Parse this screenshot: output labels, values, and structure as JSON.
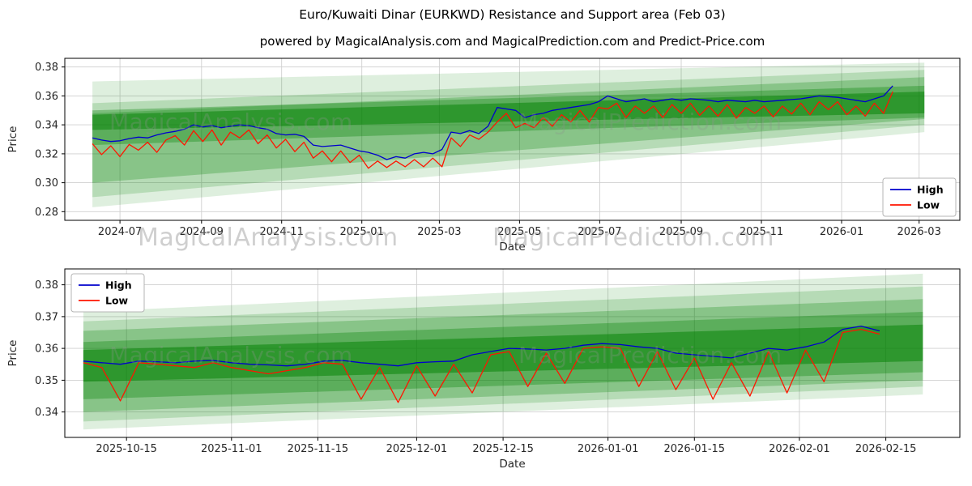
{
  "figure": {
    "suptitle": "Euro/Kuwaiti Dinar (EURKWD) Resistance and Support area (Feb 03)",
    "title": "powered by MagicalAnalysis.com and MagicalPrediction.com and Predict-Price.com"
  },
  "watermarks": {
    "top_left": "MagicalAnalysis.com",
    "top_right": "MagicalPrediction.com",
    "mid_left": "MagicalAnalysis.com",
    "mid_right": "MagicalPrediction.com",
    "bottom_left": "MagicalAnalysis.com",
    "bottom_right": "MagicalPrediction.com"
  },
  "colors": {
    "high": "#0000cd",
    "low": "#ff1500",
    "band": "#008000",
    "grid": "#cfcfcf",
    "axis": "#000000",
    "tick_text": "#262626"
  },
  "chart_data": [
    {
      "type": "line",
      "name": "full-history",
      "grid": true,
      "xlabel": "Date",
      "ylabel": "Price",
      "xlim": [
        "2024-05-20",
        "2026-04-01"
      ],
      "ylim": [
        0.274,
        0.386
      ],
      "yticks": [
        {
          "v": 0.28,
          "label": "0.28"
        },
        {
          "v": 0.3,
          "label": "0.30"
        },
        {
          "v": 0.32,
          "label": "0.32"
        },
        {
          "v": 0.34,
          "label": "0.34"
        },
        {
          "v": 0.36,
          "label": "0.36"
        },
        {
          "v": 0.38,
          "label": "0.38"
        }
      ],
      "xticks": [
        {
          "t": "2024-07-01",
          "label": "2024-07"
        },
        {
          "t": "2024-09-01",
          "label": "2024-09"
        },
        {
          "t": "2024-11-01",
          "label": "2024-11"
        },
        {
          "t": "2025-01-01",
          "label": "2025-01"
        },
        {
          "t": "2025-03-01",
          "label": "2025-03"
        },
        {
          "t": "2025-05-01",
          "label": "2025-05"
        },
        {
          "t": "2025-07-01",
          "label": "2025-07"
        },
        {
          "t": "2025-09-01",
          "label": "2025-09"
        },
        {
          "t": "2025-11-01",
          "label": "2025-11"
        },
        {
          "t": "2026-01-01",
          "label": "2026-01"
        },
        {
          "t": "2026-03-01",
          "label": "2026-03"
        }
      ],
      "legend_position": "center-right",
      "legend": [
        {
          "label": "High",
          "color": "#0000cd"
        },
        {
          "label": "Low",
          "color": "#ff1500"
        }
      ],
      "bands": [
        {
          "x": [
            "2024-06-10",
            "2026-03-05"
          ],
          "bottom": [
            0.283,
            0.335
          ],
          "top": [
            0.37,
            0.383
          ],
          "alpha": 0.13
        },
        {
          "x": [
            "2024-06-10",
            "2026-03-05"
          ],
          "bottom": [
            0.29,
            0.34
          ],
          "top": [
            0.355,
            0.378
          ],
          "alpha": 0.18
        },
        {
          "x": [
            "2024-06-10",
            "2026-03-05"
          ],
          "bottom": [
            0.3,
            0.344
          ],
          "top": [
            0.348,
            0.373
          ],
          "alpha": 0.25
        },
        {
          "x": [
            "2024-06-10",
            "2026-03-05"
          ],
          "bottom": [
            0.326,
            0.345
          ],
          "top": [
            0.35,
            0.367
          ],
          "alpha": 0.32
        },
        {
          "x": [
            "2024-06-10",
            "2026-03-05"
          ],
          "bottom": [
            0.3365,
            0.348
          ],
          "top": [
            0.347,
            0.363
          ],
          "alpha": 0.5
        }
      ],
      "series": [
        {
          "name": "High",
          "color": "#0000cd",
          "x_start_date": "2024-06-10",
          "x_interval_days": 7,
          "y_values": [
            0.331,
            0.3295,
            0.3285,
            0.329,
            0.3305,
            0.3315,
            0.331,
            0.333,
            0.3345,
            0.3355,
            0.337,
            0.34,
            0.3385,
            0.3395,
            0.338,
            0.339,
            0.34,
            0.3395,
            0.338,
            0.337,
            0.334,
            0.333,
            0.3335,
            0.332,
            0.326,
            0.325,
            0.3255,
            0.326,
            0.324,
            0.322,
            0.321,
            0.319,
            0.316,
            0.318,
            0.317,
            0.32,
            0.321,
            0.32,
            0.323,
            0.335,
            0.334,
            0.336,
            0.334,
            0.339,
            0.352,
            0.351,
            0.35,
            0.345,
            0.347,
            0.348,
            0.35,
            0.351,
            0.352,
            0.353,
            0.354,
            0.356,
            0.36,
            0.358,
            0.356,
            0.357,
            0.358,
            0.356,
            0.357,
            0.358,
            0.357,
            0.358,
            0.3575,
            0.357,
            0.356,
            0.357,
            0.3565,
            0.356,
            0.357,
            0.356,
            0.3565,
            0.357,
            0.3575,
            0.358,
            0.359,
            0.36,
            0.3595,
            0.359,
            0.358,
            0.357,
            0.356,
            0.358,
            0.36,
            0.367
          ]
        },
        {
          "name": "Low",
          "color": "#ff1500",
          "x_start_date": "2024-06-10",
          "x_interval_days": 7,
          "y_values": [
            0.327,
            0.3195,
            0.3255,
            0.318,
            0.3265,
            0.3225,
            0.328,
            0.321,
            0.3295,
            0.3325,
            0.326,
            0.336,
            0.3285,
            0.3365,
            0.326,
            0.335,
            0.331,
            0.3365,
            0.327,
            0.333,
            0.324,
            0.33,
            0.3215,
            0.328,
            0.317,
            0.322,
            0.3145,
            0.322,
            0.314,
            0.319,
            0.31,
            0.315,
            0.3105,
            0.315,
            0.311,
            0.316,
            0.311,
            0.317,
            0.311,
            0.331,
            0.325,
            0.333,
            0.33,
            0.335,
            0.342,
            0.348,
            0.338,
            0.341,
            0.338,
            0.345,
            0.339,
            0.347,
            0.342,
            0.35,
            0.342,
            0.352,
            0.351,
            0.355,
            0.345,
            0.353,
            0.348,
            0.353,
            0.345,
            0.354,
            0.348,
            0.355,
            0.3465,
            0.353,
            0.346,
            0.354,
            0.3445,
            0.352,
            0.348,
            0.353,
            0.3455,
            0.353,
            0.3475,
            0.355,
            0.347,
            0.356,
            0.3505,
            0.356,
            0.347,
            0.353,
            0.346,
            0.355,
            0.348,
            0.363
          ]
        }
      ]
    },
    {
      "type": "line",
      "name": "recent-detail",
      "grid": true,
      "xlabel": "Date",
      "ylabel": "Price",
      "xlim": [
        "2025-10-05",
        "2026-02-27"
      ],
      "ylim": [
        0.332,
        0.385
      ],
      "yticks": [
        {
          "v": 0.34,
          "label": "0.34"
        },
        {
          "v": 0.35,
          "label": "0.35"
        },
        {
          "v": 0.36,
          "label": "0.36"
        },
        {
          "v": 0.37,
          "label": "0.37"
        },
        {
          "v": 0.38,
          "label": "0.38"
        }
      ],
      "xticks": [
        {
          "t": "2025-10-15",
          "label": "2025-10-15"
        },
        {
          "t": "2025-11-01",
          "label": "2025-11-01"
        },
        {
          "t": "2025-11-15",
          "label": "2025-11-15"
        },
        {
          "t": "2025-12-01",
          "label": "2025-12-01"
        },
        {
          "t": "2025-12-15",
          "label": "2025-12-15"
        },
        {
          "t": "2026-01-01",
          "label": "2026-01-01"
        },
        {
          "t": "2026-01-15",
          "label": "2026-01-15"
        },
        {
          "t": "2026-02-01",
          "label": "2026-02-01"
        },
        {
          "t": "2026-02-15",
          "label": "2026-02-15"
        }
      ],
      "legend_position": "upper-left",
      "legend": [
        {
          "label": "High",
          "color": "#0000cd"
        },
        {
          "label": "Low",
          "color": "#ff1500"
        }
      ],
      "bands": [
        {
          "x": [
            "2025-10-08",
            "2026-02-21"
          ],
          "bottom": [
            0.3345,
            0.3455
          ],
          "top": [
            0.3715,
            0.3835
          ],
          "alpha": 0.13
        },
        {
          "x": [
            "2025-10-08",
            "2026-02-21"
          ],
          "bottom": [
            0.337,
            0.348
          ],
          "top": [
            0.3685,
            0.3795
          ],
          "alpha": 0.18
        },
        {
          "x": [
            "2025-10-08",
            "2026-02-21"
          ],
          "bottom": [
            0.34,
            0.35
          ],
          "top": [
            0.3655,
            0.3755
          ],
          "alpha": 0.25
        },
        {
          "x": [
            "2025-10-08",
            "2026-02-21"
          ],
          "bottom": [
            0.344,
            0.3525
          ],
          "top": [
            0.362,
            0.3715
          ],
          "alpha": 0.32
        },
        {
          "x": [
            "2025-10-08",
            "2026-02-21"
          ],
          "bottom": [
            0.3495,
            0.356
          ],
          "top": [
            0.3595,
            0.3675
          ],
          "alpha": 0.5
        }
      ],
      "series": [
        {
          "name": "High",
          "color": "#0000cd",
          "x_start_date": "2025-10-08",
          "x_interval_days": 3,
          "y_values": [
            0.356,
            0.3555,
            0.355,
            0.356,
            0.3558,
            0.3555,
            0.356,
            0.3562,
            0.3555,
            0.355,
            0.3548,
            0.3545,
            0.355,
            0.356,
            0.3562,
            0.3555,
            0.355,
            0.3545,
            0.3555,
            0.3558,
            0.356,
            0.358,
            0.359,
            0.36,
            0.3598,
            0.3595,
            0.36,
            0.361,
            0.3615,
            0.3612,
            0.3605,
            0.36,
            0.3585,
            0.358,
            0.3575,
            0.357,
            0.3585,
            0.36,
            0.3595,
            0.3605,
            0.362,
            0.366,
            0.367,
            0.3655
          ]
        },
        {
          "name": "Low",
          "color": "#ff1500",
          "x_start_date": "2025-10-08",
          "x_interval_days": 3,
          "y_values": [
            0.3555,
            0.354,
            0.3435,
            0.3555,
            0.355,
            0.3545,
            0.354,
            0.3555,
            0.354,
            0.353,
            0.352,
            0.353,
            0.354,
            0.3555,
            0.355,
            0.344,
            0.354,
            0.343,
            0.3545,
            0.345,
            0.355,
            0.346,
            0.358,
            0.359,
            0.348,
            0.3585,
            0.349,
            0.36,
            0.3605,
            0.36,
            0.348,
            0.359,
            0.347,
            0.357,
            0.344,
            0.3555,
            0.345,
            0.359,
            0.346,
            0.3595,
            0.3495,
            0.365,
            0.366,
            0.3645
          ]
        }
      ]
    }
  ]
}
